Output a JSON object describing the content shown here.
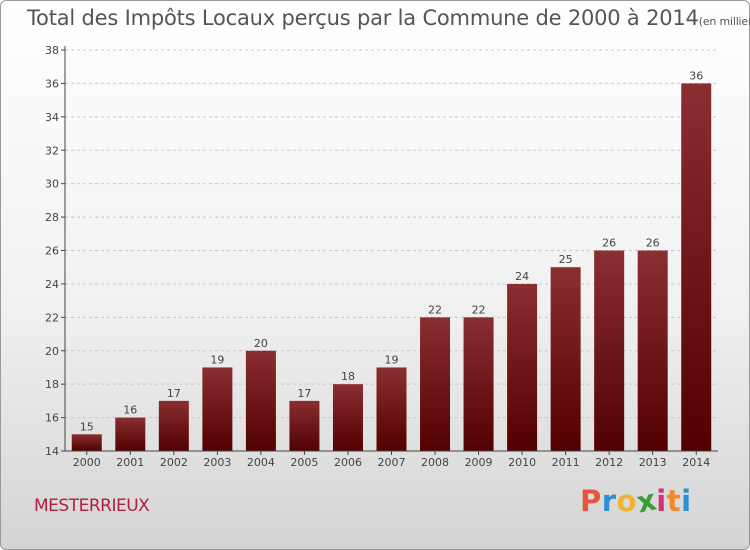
{
  "header": {
    "title": "Total des Impôts Locaux perçus par la Commune de 2000 à 2014",
    "unit": "(en milliers d'€)"
  },
  "footer": {
    "commune": "MESTERRIEUX",
    "logo_letters": [
      "P",
      "r",
      "o",
      "x",
      "i",
      "t",
      "i"
    ],
    "logo_colors": [
      "#e8553b",
      "#2f8fd0",
      "#f2b234",
      "#3a9b3a",
      "#d62f76",
      "#f08a2a",
      "#2f8fd0"
    ]
  },
  "colors": {
    "bar_top": "#8a2e32",
    "bar_bottom": "#520000",
    "axis": "#444444",
    "grid": "#c8c8c8",
    "text": "#444444"
  },
  "chart_data": {
    "type": "bar",
    "title": "Total des Impôts Locaux perçus par la Commune de 2000 à 2014",
    "unit_label": "(en milliers d'€)",
    "xlabel": "",
    "ylabel": "",
    "categories": [
      "2000",
      "2001",
      "2002",
      "2003",
      "2004",
      "2005",
      "2006",
      "2007",
      "2008",
      "2009",
      "2010",
      "2011",
      "2012",
      "2013",
      "2014"
    ],
    "values": [
      15,
      16,
      17,
      19,
      20,
      17,
      18,
      19,
      22,
      22,
      24,
      25,
      26,
      26,
      36
    ],
    "ylim": [
      14,
      38
    ],
    "yticks": [
      "14",
      "16",
      "18",
      "20",
      "22",
      "24",
      "26",
      "28",
      "30",
      "32",
      "34",
      "36",
      "38"
    ],
    "grid": true,
    "legend": "none"
  }
}
